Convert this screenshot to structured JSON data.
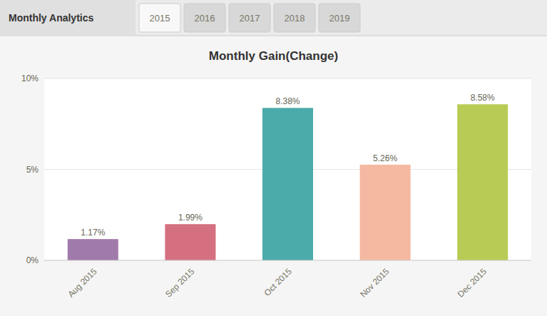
{
  "chart_data": {
    "type": "bar",
    "title": "Monthly Gain(Change)",
    "annotations": [
      "Monthly Analytics",
      "2015",
      "2016",
      "2017",
      "2018",
      "2019"
    ],
    "categories": [
      "Aug 2015",
      "Sep 2015",
      "Oct 2015",
      "Nov 2015",
      "Dec 2015"
    ],
    "values": [
      1.17,
      1.99,
      8.38,
      5.26,
      8.58
    ],
    "value_labels": [
      "1.17%",
      "1.99%",
      "8.38%",
      "5.26%",
      "8.58%"
    ],
    "colors": [
      "#a07aaa",
      "#d47080",
      "#4aabaa",
      "#f5b8a0",
      "#b8cc55"
    ],
    "ylim": [
      0,
      10
    ],
    "yticks": [
      {
        "value": 0,
        "label": "0%"
      },
      {
        "value": 5,
        "label": "5%"
      },
      {
        "value": 10,
        "label": "10%"
      }
    ],
    "grid": true,
    "data_labels": true
  }
}
